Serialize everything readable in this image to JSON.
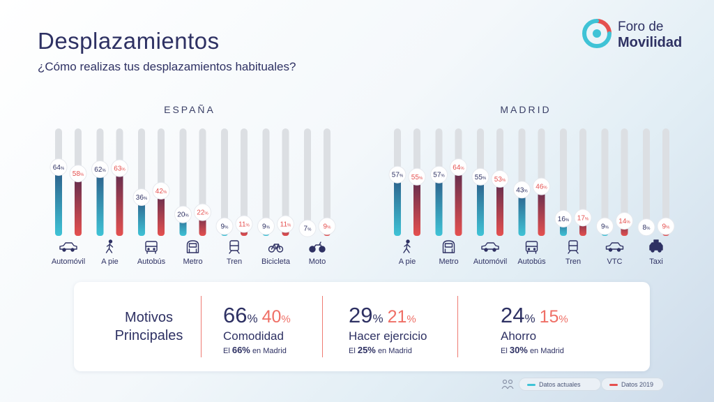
{
  "title": "Desplazamientos",
  "subtitle": "¿Cómo realizas tus desplazamientos habituales?",
  "logo": {
    "line1": "Foro de",
    "line2": "Movilidad"
  },
  "colors": {
    "current": "#3fc3d6",
    "y2019": "#e5504f",
    "track": "#dcdfe3",
    "text": "#2e3163"
  },
  "chart_data": [
    {
      "type": "bar",
      "title": "ESPAÑA",
      "categories": [
        "Automóvil",
        "A pie",
        "Autobús",
        "Metro",
        "Tren",
        "Bicicleta",
        "Moto"
      ],
      "icons": [
        "car-icon",
        "walk-icon",
        "bus-icon",
        "metro-icon",
        "train-icon",
        "bicycle-icon",
        "motorcycle-icon"
      ],
      "series": [
        {
          "name": "Datos actuales",
          "values": [
            64,
            62,
            36,
            20,
            9,
            9,
            7
          ]
        },
        {
          "name": "Datos 2019",
          "values": [
            58,
            63,
            42,
            22,
            11,
            11,
            9
          ]
        }
      ],
      "ylim": [
        0,
        100
      ],
      "value_suffix": "%"
    },
    {
      "type": "bar",
      "title": "MADRID",
      "categories": [
        "A pie",
        "Metro",
        "Automóvil",
        "Autobús",
        "Tren",
        "VTC",
        "Taxi"
      ],
      "icons": [
        "walk-icon",
        "metro-icon",
        "car-icon",
        "bus-icon",
        "train-icon",
        "vtc-car-icon",
        "taxi-icon"
      ],
      "series": [
        {
          "name": "Datos actuales",
          "values": [
            57,
            57,
            55,
            43,
            16,
            9,
            8
          ]
        },
        {
          "name": "Datos 2019",
          "values": [
            55,
            64,
            53,
            46,
            17,
            14,
            9
          ]
        }
      ],
      "ylim": [
        0,
        100
      ],
      "value_suffix": "%"
    }
  ],
  "motivos": {
    "heading_line1": "Motivos",
    "heading_line2": "Principales",
    "items": [
      {
        "value": "66",
        "value2019": "40",
        "label": "Comodidad",
        "madrid_prefix": "El",
        "madrid_value": "66%",
        "madrid_suffix": "en Madrid"
      },
      {
        "value": "29",
        "value2019": "21",
        "label": "Hacer ejercicio",
        "madrid_prefix": "El",
        "madrid_value": "25%",
        "madrid_suffix": "en Madrid"
      },
      {
        "value": "24",
        "value2019": "15",
        "label": "Ahorro",
        "madrid_prefix": "El",
        "madrid_value": "30%",
        "madrid_suffix": "en Madrid"
      }
    ],
    "pct_sign": "%"
  },
  "legend": {
    "current": "Datos actuales",
    "y2019": "Datos 2019"
  }
}
